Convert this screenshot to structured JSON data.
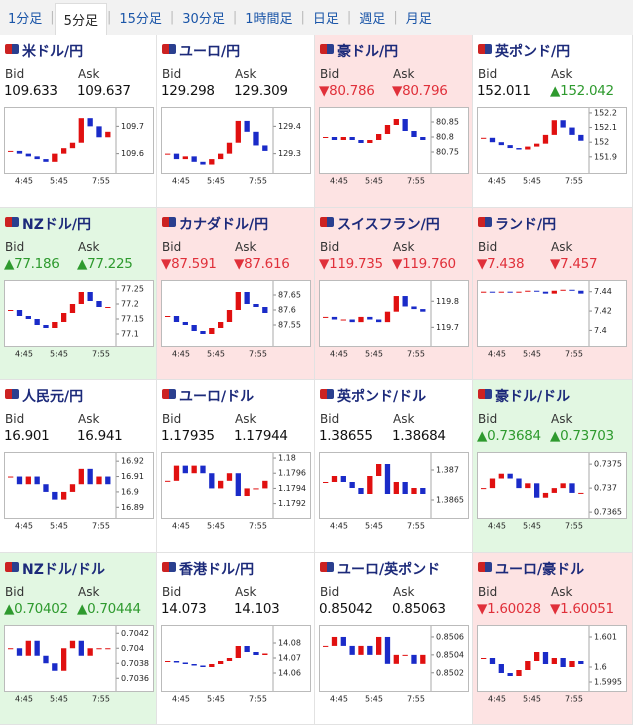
{
  "tabs": [
    "1分足",
    "5分足",
    "15分足",
    "30分足",
    "1時間足",
    "日足",
    "週足",
    "月足"
  ],
  "selected_tab": 1,
  "bid_label": "Bid",
  "ask_label": "Ask",
  "time_labels": [
    "4:45",
    "5:45",
    "7:55"
  ],
  "up_color": "#e01010",
  "down_color": "#1a2bc8",
  "panels": [
    {
      "title": "米ドル/円",
      "background": "#ffffff",
      "bid": "109.633",
      "bid_color": "#111",
      "ask": "109.637",
      "ask_color": "#111",
      "chart": {
        "ylim": [
          109.54,
          109.76
        ],
        "yticks": [
          109.7,
          109.6
        ],
        "closes": [
          109.61,
          109.6,
          109.59,
          109.58,
          109.57,
          109.6,
          109.62,
          109.64,
          109.73,
          109.7,
          109.66,
          109.68
        ]
      }
    },
    {
      "title": "ユーロ/円",
      "background": "#ffffff",
      "bid": "129.298",
      "bid_color": "#111",
      "ask": "129.309",
      "ask_color": "#111",
      "chart": {
        "ylim": [
          129.24,
          129.46
        ],
        "yticks": [
          129.4,
          129.3
        ],
        "closes": [
          129.3,
          129.28,
          129.29,
          129.27,
          129.26,
          129.28,
          129.3,
          129.34,
          129.42,
          129.38,
          129.33,
          129.31
        ]
      }
    },
    {
      "title": "豪ドル/円",
      "background": "#fde3e3",
      "bid": "▼80.786",
      "bid_color": "#e0303a",
      "ask": "▼80.796",
      "ask_color": "#e0303a",
      "chart": {
        "ylim": [
          80.69,
          80.89
        ],
        "yticks": [
          80.85,
          80.8,
          80.75
        ],
        "closes": [
          80.8,
          80.79,
          80.8,
          80.79,
          80.78,
          80.79,
          80.81,
          80.84,
          80.86,
          80.82,
          80.8,
          80.79
        ]
      }
    },
    {
      "title": "英ポンド/円",
      "background": "#ffffff",
      "bid": "152.011",
      "bid_color": "#111",
      "ask": "▲152.042",
      "ask_color": "#2e9a2e",
      "chart": {
        "ylim": [
          151.81,
          152.22
        ],
        "yticks": [
          152.2,
          152.1,
          152,
          151.9
        ],
        "closes": [
          152.03,
          152.0,
          151.98,
          151.96,
          151.95,
          151.97,
          151.99,
          152.05,
          152.15,
          152.1,
          152.05,
          152.01
        ]
      }
    },
    {
      "title": "NZドル/円",
      "background": "#e2f7e2",
      "bid": "▲77.186",
      "bid_color": "#2e9a2e",
      "ask": "▲77.225",
      "ask_color": "#2e9a2e",
      "chart": {
        "ylim": [
          77.07,
          77.27
        ],
        "yticks": [
          77.25,
          77.2,
          77.15,
          77.1
        ],
        "closes": [
          77.18,
          77.16,
          77.15,
          77.13,
          77.12,
          77.14,
          77.17,
          77.2,
          77.24,
          77.21,
          77.19,
          77.19
        ]
      }
    },
    {
      "title": "カナダドル/円",
      "background": "#fde3e3",
      "bid": "▼87.591",
      "bid_color": "#e0303a",
      "ask": "▼87.616",
      "ask_color": "#e0303a",
      "chart": {
        "ylim": [
          87.49,
          87.69
        ],
        "yticks": [
          87.65,
          87.6,
          87.55
        ],
        "closes": [
          87.58,
          87.56,
          87.55,
          87.53,
          87.52,
          87.54,
          87.56,
          87.6,
          87.66,
          87.62,
          87.61,
          87.59
        ]
      }
    },
    {
      "title": "スイスフラン/円",
      "background": "#fde3e3",
      "bid": "▼119.735",
      "bid_color": "#e0303a",
      "ask": "▼119.760",
      "ask_color": "#e0303a",
      "chart": {
        "ylim": [
          119.64,
          119.87
        ],
        "yticks": [
          119.8,
          119.7
        ],
        "closes": [
          119.74,
          119.73,
          119.73,
          119.72,
          119.74,
          119.73,
          119.72,
          119.76,
          119.82,
          119.78,
          119.77,
          119.76
        ]
      }
    },
    {
      "title": "ランド/円",
      "background": "#fde3e3",
      "bid": "▼7.438",
      "bid_color": "#e0303a",
      "ask": "▼7.457",
      "ask_color": "#e0303a",
      "chart": {
        "ylim": [
          7.387,
          7.449
        ],
        "yticks": [
          7.44,
          7.42,
          7.4
        ],
        "closes": [
          7.44,
          7.439,
          7.44,
          7.439,
          7.44,
          7.441,
          7.44,
          7.438,
          7.441,
          7.442,
          7.441,
          7.438
        ]
      }
    },
    {
      "title": "人民元/円",
      "background": "#ffffff",
      "bid": "16.901",
      "bid_color": "#111",
      "ask": "16.941",
      "ask_color": "#111",
      "chart": {
        "ylim": [
          16.885,
          16.924
        ],
        "yticks": [
          16.92,
          16.91,
          16.9,
          16.89
        ],
        "closes": [
          16.91,
          16.905,
          16.91,
          16.905,
          16.9,
          16.895,
          16.9,
          16.905,
          16.915,
          16.905,
          16.91,
          16.905
        ]
      }
    },
    {
      "title": "ユーロ/ドル",
      "background": "#ffffff",
      "bid": "1.17935",
      "bid_color": "#111",
      "ask": "1.17944",
      "ask_color": "#111",
      "chart": {
        "ylim": [
          1.17905,
          1.17984
        ],
        "yticks": [
          {
            "value": 1.1798,
            "label": "1.18"
          },
          1.1796,
          1.1794,
          1.1792
        ],
        "closes": [
          1.1795,
          1.1797,
          1.1796,
          1.1797,
          1.1796,
          1.1794,
          1.1795,
          1.1796,
          1.1793,
          1.1794,
          1.1794,
          1.1795
        ]
      }
    },
    {
      "title": "英ポンド/ドル",
      "background": "#ffffff",
      "bid": "1.38655",
      "bid_color": "#111",
      "ask": "1.38684",
      "ask_color": "#111",
      "chart": {
        "ylim": [
          1.38625,
          1.38725
        ],
        "yticks": [
          1.387,
          1.3865
        ],
        "closes": [
          1.3868,
          1.3869,
          1.3868,
          1.3867,
          1.3866,
          1.3869,
          1.3871,
          1.3866,
          1.3868,
          1.3866,
          1.3867,
          1.3866
        ]
      }
    },
    {
      "title": "豪ドル/ドル",
      "background": "#e2f7e2",
      "bid": "▲0.73684",
      "bid_color": "#2e9a2e",
      "ask": "▲0.73703",
      "ask_color": "#2e9a2e",
      "chart": {
        "ylim": [
          0.73644,
          0.73769
        ],
        "yticks": [
          0.7375,
          0.737,
          0.7365
        ],
        "closes": [
          0.737,
          0.7372,
          0.7373,
          0.7372,
          0.737,
          0.7371,
          0.7368,
          0.7369,
          0.737,
          0.7371,
          0.7369,
          0.7369
        ]
      }
    },
    {
      "title": "NZドル/ドル",
      "background": "#e2f7e2",
      "bid": "▲0.70402",
      "bid_color": "#2e9a2e",
      "ask": "▲0.70444",
      "ask_color": "#2e9a2e",
      "chart": {
        "ylim": [
          0.70347,
          0.70427
        ],
        "yticks": [
          0.7042,
          0.704,
          0.7038,
          0.7036
        ],
        "closes": [
          0.704,
          0.7039,
          0.7041,
          0.7039,
          0.7038,
          0.7037,
          0.704,
          0.7041,
          0.7039,
          0.704,
          0.704,
          0.704
        ]
      }
    },
    {
      "title": "香港ドル/円",
      "background": "#ffffff",
      "bid": "14.073",
      "bid_color": "#111",
      "ask": "14.103",
      "ask_color": "#111",
      "chart": {
        "ylim": [
          14.05,
          14.09
        ],
        "yticks": [
          14.08,
          14.07,
          14.06
        ],
        "closes": [
          14.068,
          14.067,
          14.066,
          14.065,
          14.064,
          14.066,
          14.068,
          14.07,
          14.078,
          14.074,
          14.072,
          14.073
        ]
      }
    },
    {
      "title": "ユーロ/英ポンド",
      "background": "#ffffff",
      "bid": "0.85042",
      "bid_color": "#111",
      "ask": "0.85063",
      "ask_color": "#111",
      "chart": {
        "ylim": [
          0.85003,
          0.8507
        ],
        "yticks": [
          0.8506,
          0.8504,
          0.8502
        ],
        "closes": [
          0.8505,
          0.8506,
          0.8505,
          0.8504,
          0.8505,
          0.8504,
          0.8506,
          0.8503,
          0.8504,
          0.8504,
          0.8503,
          0.8504
        ]
      }
    },
    {
      "title": "ユーロ/豪ドル",
      "background": "#fde3e3",
      "bid": "▼1.60028",
      "bid_color": "#e0303a",
      "ask": "▼1.60051",
      "ask_color": "#e0303a",
      "chart": {
        "ylim": [
          1.5993,
          1.6013
        ],
        "yticks": [
          1.601,
          1.6,
          1.5995
        ],
        "closes": [
          1.6003,
          1.6001,
          1.5998,
          1.5997,
          1.5999,
          1.6002,
          1.6005,
          1.6001,
          1.6003,
          1.6,
          1.6002,
          1.6001
        ]
      }
    }
  ]
}
